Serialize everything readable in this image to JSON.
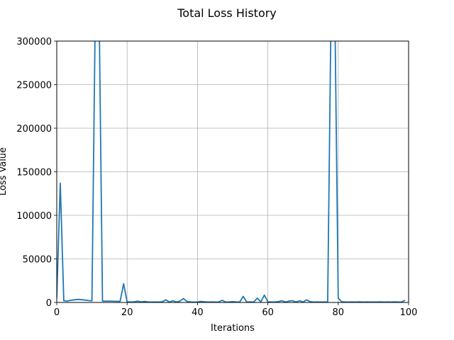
{
  "chart_data": {
    "type": "line",
    "title": "Total Loss History",
    "xlabel": "Iterations",
    "ylabel": "Loss Value",
    "xlim": [
      0,
      100
    ],
    "ylim": [
      0,
      300000
    ],
    "xticks": [
      0,
      20,
      40,
      60,
      80,
      100
    ],
    "yticks": [
      0,
      50000,
      100000,
      150000,
      200000,
      250000,
      300000
    ],
    "xtick_labels": [
      "0",
      "20",
      "40",
      "60",
      "80",
      "100"
    ],
    "ytick_labels": [
      "0",
      "50000",
      "100000",
      "150000",
      "200000",
      "250000",
      "300000"
    ],
    "grid": true,
    "legend": "none",
    "color": "#1f77b4",
    "series": [
      {
        "x": [
          0,
          1,
          2,
          3,
          4,
          5,
          6,
          7,
          8,
          9,
          10,
          11,
          12,
          13,
          14,
          15,
          16,
          17,
          18,
          19,
          20,
          21,
          22,
          23,
          24,
          25,
          26,
          27,
          28,
          29,
          30,
          31,
          32,
          33,
          34,
          35,
          36,
          37,
          38,
          39,
          40,
          41,
          42,
          43,
          44,
          45,
          46,
          47,
          48,
          49,
          50,
          51,
          52,
          53,
          54,
          55,
          56,
          57,
          58,
          59,
          60,
          61,
          62,
          63,
          64,
          65,
          66,
          67,
          68,
          69,
          70,
          71,
          72,
          73,
          74,
          75,
          76,
          77,
          78,
          79,
          80,
          81,
          82,
          83,
          84,
          85,
          86,
          87,
          88,
          89,
          90,
          91,
          92,
          93,
          94,
          95,
          96,
          97,
          98,
          99
        ],
        "values": [
          5000,
          137000,
          2000,
          1500,
          2500,
          3000,
          3500,
          3200,
          2800,
          2200,
          1800,
          350000,
          350000,
          1500,
          1500,
          1500,
          1400,
          1300,
          1200,
          21500,
          800,
          500,
          700,
          1500,
          600,
          1200,
          600,
          500,
          600,
          500,
          800,
          3000,
          500,
          2000,
          500,
          1500,
          4500,
          1200,
          600,
          500,
          600,
          1200,
          800,
          500,
          600,
          500,
          500,
          2500,
          500,
          600,
          1000,
          500,
          600,
          7000,
          500,
          600,
          500,
          5000,
          600,
          8500,
          800,
          600,
          500,
          1000,
          2000,
          500,
          1500,
          2000,
          500,
          2000,
          500,
          3000,
          1000,
          500,
          600,
          500,
          600,
          500,
          350000,
          350000,
          5000,
          800,
          600,
          500,
          600,
          500,
          700,
          500,
          600,
          500,
          600,
          500,
          700,
          500,
          600,
          500,
          700,
          500,
          600,
          2500
        ]
      }
    ]
  }
}
